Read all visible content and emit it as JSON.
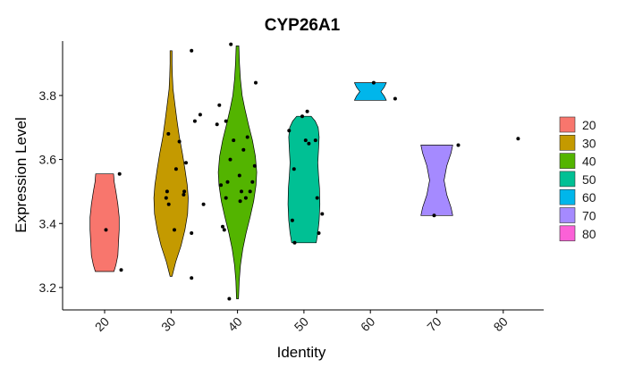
{
  "chart_data": {
    "type": "violin",
    "title": "CYP26A1",
    "xlabel": "Identity",
    "ylabel": "Expression Level",
    "categories": [
      "20",
      "30",
      "40",
      "50",
      "60",
      "70",
      "80"
    ],
    "ylim": [
      3.13,
      3.97
    ],
    "yticks": [
      3.2,
      3.4,
      3.6,
      3.8
    ],
    "ytick_labels": [
      "3.2",
      "3.4",
      "3.6",
      "3.8"
    ],
    "grid": false,
    "legend": {
      "position": "right",
      "entries": [
        "20",
        "30",
        "40",
        "50",
        "60",
        "70",
        "80"
      ]
    },
    "colors": [
      "#F8766D",
      "#C49A00",
      "#53B400",
      "#00C094",
      "#00B6EB",
      "#A58AFF",
      "#FB61D7"
    ],
    "violins": [
      {
        "category": "20",
        "y_min": 3.25,
        "y_max": 3.555,
        "profile": [
          [
            3.25,
            0.28
          ],
          [
            3.27,
            0.34
          ],
          [
            3.3,
            0.4
          ],
          [
            3.34,
            0.42
          ],
          [
            3.38,
            0.44
          ],
          [
            3.42,
            0.44
          ],
          [
            3.46,
            0.4
          ],
          [
            3.5,
            0.34
          ],
          [
            3.53,
            0.29
          ],
          [
            3.555,
            0.27
          ]
        ],
        "points": [
          [
            0.04,
            3.38
          ],
          [
            0.45,
            3.555
          ],
          [
            0.5,
            3.255
          ]
        ]
      },
      {
        "category": "30",
        "y_min": 3.235,
        "y_max": 3.94,
        "profile": [
          [
            3.235,
            0.03
          ],
          [
            3.28,
            0.14
          ],
          [
            3.33,
            0.3
          ],
          [
            3.38,
            0.42
          ],
          [
            3.43,
            0.5
          ],
          [
            3.48,
            0.52
          ],
          [
            3.52,
            0.49
          ],
          [
            3.57,
            0.42
          ],
          [
            3.62,
            0.34
          ],
          [
            3.67,
            0.25
          ],
          [
            3.72,
            0.18
          ],
          [
            3.77,
            0.12
          ],
          [
            3.82,
            0.06
          ],
          [
            3.86,
            0.04
          ],
          [
            3.9,
            0.03
          ],
          [
            3.94,
            0.03
          ]
        ],
        "points": [
          [
            -0.15,
            3.48
          ],
          [
            -0.07,
            3.46
          ],
          [
            -0.08,
            3.68
          ],
          [
            0.15,
            3.57
          ],
          [
            0.25,
            3.656
          ],
          [
            0.38,
            3.49
          ],
          [
            0.4,
            3.5
          ],
          [
            0.62,
            3.37
          ],
          [
            0.98,
            3.46
          ],
          [
            0.72,
            3.72
          ],
          [
            0.88,
            3.74
          ],
          [
            0.45,
            3.59
          ],
          [
            -0.12,
            3.5
          ],
          [
            0.62,
            3.23
          ],
          [
            0.62,
            3.94
          ],
          [
            0.1,
            3.38
          ]
        ]
      },
      {
        "category": "40",
        "y_min": 3.165,
        "y_max": 3.955,
        "profile": [
          [
            3.165,
            0.03
          ],
          [
            3.22,
            0.05
          ],
          [
            3.27,
            0.09
          ],
          [
            3.32,
            0.16
          ],
          [
            3.37,
            0.26
          ],
          [
            3.42,
            0.38
          ],
          [
            3.47,
            0.49
          ],
          [
            3.52,
            0.56
          ],
          [
            3.56,
            0.58
          ],
          [
            3.61,
            0.54
          ],
          [
            3.66,
            0.45
          ],
          [
            3.71,
            0.33
          ],
          [
            3.76,
            0.22
          ],
          [
            3.8,
            0.14
          ],
          [
            3.85,
            0.09
          ],
          [
            3.9,
            0.06
          ],
          [
            3.955,
            0.04
          ]
        ],
        "points": [
          [
            -0.25,
            3.165
          ],
          [
            -0.2,
            3.96
          ],
          [
            0.55,
            3.84
          ],
          [
            0.3,
            3.67
          ],
          [
            0.18,
            3.63
          ],
          [
            0.12,
            3.5
          ],
          [
            0.25,
            3.48
          ],
          [
            -0.12,
            3.66
          ],
          [
            -0.35,
            3.72
          ],
          [
            -0.62,
            3.71
          ],
          [
            -0.55,
            3.77
          ],
          [
            -0.5,
            3.52
          ],
          [
            -0.35,
            3.48
          ],
          [
            -0.45,
            3.39
          ],
          [
            -0.4,
            3.38
          ],
          [
            -0.3,
            3.53
          ],
          [
            -0.22,
            3.6
          ],
          [
            0.06,
            3.55
          ],
          [
            0.38,
            3.5
          ],
          [
            0.45,
            3.53
          ],
          [
            0.52,
            3.58
          ],
          [
            0.08,
            3.47
          ]
        ]
      },
      {
        "category": "50",
        "y_min": 3.34,
        "y_max": 3.735,
        "profile": [
          [
            3.34,
            0.37
          ],
          [
            3.37,
            0.42
          ],
          [
            3.41,
            0.46
          ],
          [
            3.46,
            0.48
          ],
          [
            3.51,
            0.47
          ],
          [
            3.55,
            0.44
          ],
          [
            3.59,
            0.42
          ],
          [
            3.63,
            0.44
          ],
          [
            3.67,
            0.46
          ],
          [
            3.7,
            0.43
          ],
          [
            3.72,
            0.34
          ],
          [
            3.735,
            0.22
          ]
        ],
        "points": [
          [
            -0.45,
            3.69
          ],
          [
            -0.35,
            3.41
          ],
          [
            -0.28,
            3.34
          ],
          [
            -0.3,
            3.57
          ],
          [
            0.05,
            3.66
          ],
          [
            0.1,
            3.75
          ],
          [
            0.15,
            3.65
          ],
          [
            0.35,
            3.66
          ],
          [
            0.4,
            3.48
          ],
          [
            0.45,
            3.37
          ],
          [
            0.55,
            3.43
          ],
          [
            -0.05,
            3.735
          ]
        ]
      },
      {
        "category": "60",
        "y_min": 3.785,
        "y_max": 3.84,
        "profile": [
          [
            3.785,
            0.48
          ],
          [
            3.798,
            0.42
          ],
          [
            3.812,
            0.32
          ],
          [
            3.826,
            0.42
          ],
          [
            3.84,
            0.48
          ]
        ],
        "points": [
          [
            0.1,
            3.84
          ],
          [
            0.75,
            3.79
          ]
        ]
      },
      {
        "category": "70",
        "y_min": 3.425,
        "y_max": 3.645,
        "profile": [
          [
            3.425,
            0.48
          ],
          [
            3.45,
            0.43
          ],
          [
            3.49,
            0.3
          ],
          [
            3.535,
            0.22
          ],
          [
            3.58,
            0.3
          ],
          [
            3.62,
            0.43
          ],
          [
            3.645,
            0.48
          ]
        ],
        "points": [
          [
            -0.08,
            3.425
          ],
          [
            0.65,
            3.645
          ]
        ]
      },
      {
        "category": "80",
        "y_min": null,
        "y_max": null,
        "profile": [],
        "points": [
          [
            0.45,
            3.665
          ]
        ]
      }
    ]
  }
}
